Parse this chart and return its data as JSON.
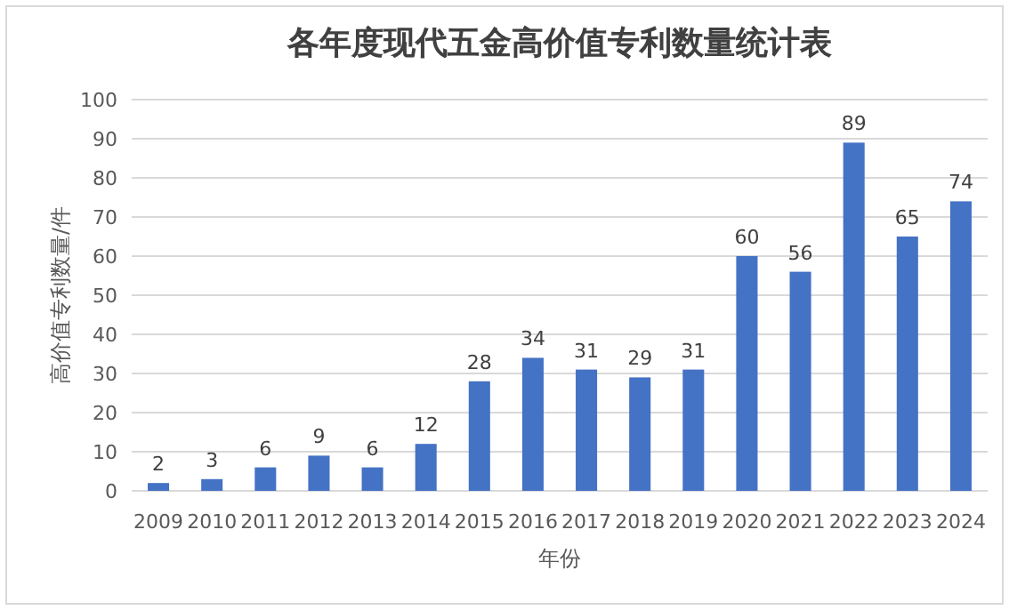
{
  "chart_data": {
    "type": "bar",
    "title": "各年度现代五金高价值专利数量统计表",
    "xlabel": "年份",
    "ylabel": "高价值专利数量/件",
    "categories": [
      "2009",
      "2010",
      "2011",
      "2012",
      "2013",
      "2014",
      "2015",
      "2016",
      "2017",
      "2018",
      "2019",
      "2020",
      "2021",
      "2022",
      "2023",
      "2024"
    ],
    "values": [
      2,
      3,
      6,
      9,
      6,
      12,
      28,
      34,
      31,
      29,
      31,
      60,
      56,
      89,
      65,
      74
    ],
    "color": "#4472c4",
    "ylim": [
      0,
      100
    ],
    "yticks": [
      0,
      10,
      20,
      30,
      40,
      50,
      60,
      70,
      80,
      90,
      100
    ],
    "grid": "y",
    "data_labels": true
  }
}
